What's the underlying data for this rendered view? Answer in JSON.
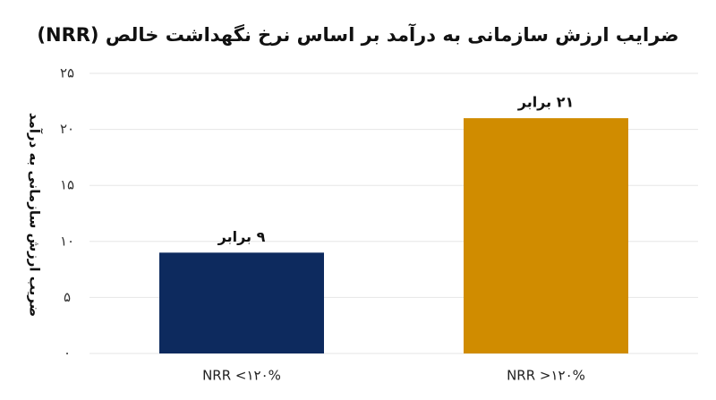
{
  "chart_data": {
    "type": "bar",
    "title": "ضرایب ارزش سازمانی به درآمد بر اساس نرخ نگهداشت خالص (NRR)",
    "y_label": "ضریب ارزش سازمانی به درآمد",
    "categories": [
      "NRR <۱۲۰%",
      "NRR >۱۲۰%"
    ],
    "values": [
      9,
      21
    ],
    "value_labels": [
      "۹ برابر",
      "۲۱ برابر"
    ],
    "colors": [
      "#0d2a5e",
      "#d08c00"
    ],
    "ylim": [
      0,
      25
    ],
    "yticks": [
      {
        "value": 0,
        "label": "۰"
      },
      {
        "value": 5,
        "label": "۵"
      },
      {
        "value": 10,
        "label": "۱۰"
      },
      {
        "value": 15,
        "label": "۱۵"
      },
      {
        "value": 20,
        "label": "۲۰"
      },
      {
        "value": 25,
        "label": "۲۵"
      }
    ],
    "grid": true
  }
}
